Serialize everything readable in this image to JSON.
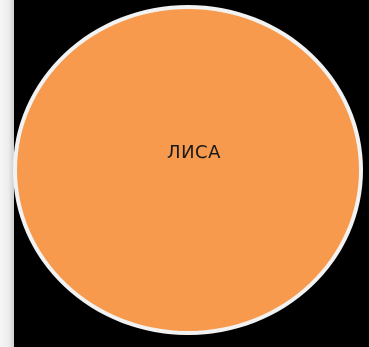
{
  "diagram": {
    "node": {
      "label": "ЛИСА",
      "shape": "circle",
      "fill_color": "#f79a4d",
      "border_color": "#f2f2f2"
    },
    "background_color": "#000000"
  }
}
